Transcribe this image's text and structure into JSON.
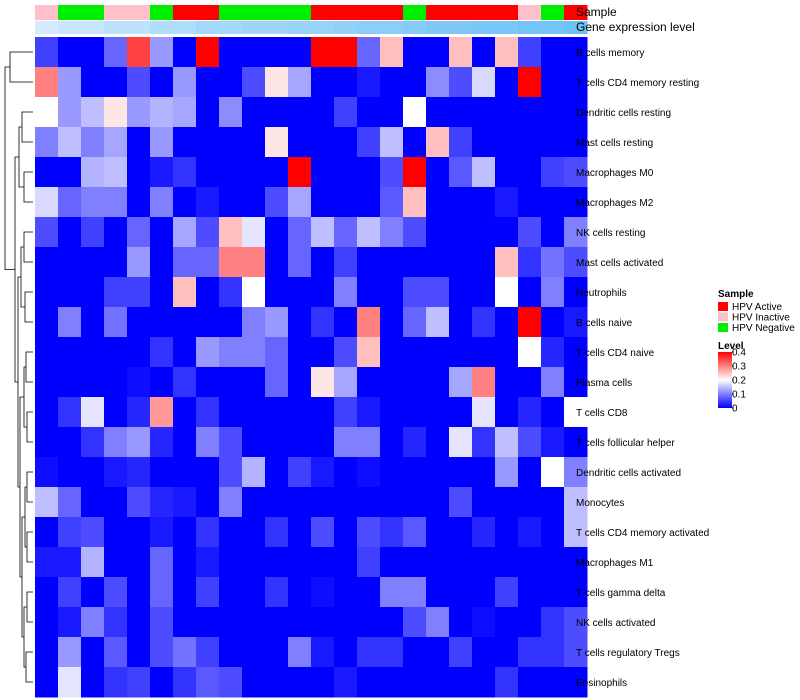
{
  "chart_data": {
    "type": "heatmap",
    "annotation_labels": [
      "Sample",
      "Gene expression level"
    ],
    "sample_groups": [
      "HPV Inactive",
      "HPV Negative",
      "HPV Negative",
      "HPV Inactive",
      "HPV Inactive",
      "HPV Negative",
      "HPV Active",
      "HPV Active",
      "HPV Negative",
      "HPV Negative",
      "HPV Negative",
      "HPV Negative",
      "HPV Active",
      "HPV Active",
      "HPV Active",
      "HPV Active",
      "HPV Negative",
      "HPV Active",
      "HPV Active",
      "HPV Active",
      "HPV Active",
      "HPV Inactive",
      "HPV Negative",
      "HPV Active"
    ],
    "gene_expression_level": [
      0.15,
      0.25,
      0.25,
      0.35,
      0.35,
      0.45,
      0.45,
      0.55,
      0.55,
      0.6,
      0.6,
      0.65,
      0.65,
      0.7,
      0.75,
      0.75,
      0.8,
      0.85,
      0.85,
      0.9,
      0.9,
      0.95,
      0.95,
      1.0
    ],
    "rows": [
      "B cells memory",
      "T cells CD4 memory resting",
      "Dendritic cells resting",
      "Mast cells resting",
      "Macrophages M0",
      "Macrophages M2",
      "NK cells resting",
      "Mast cells activated",
      "Neutrophils",
      "B cells naive",
      "T cells CD4 naive",
      "Plasma cells",
      "T cells CD8",
      "T cells follicular helper",
      "Dendritic cells activated",
      "Monocytes",
      "T cells CD4 memory activated",
      "Macrophages M1",
      "T cells gamma delta",
      "NK cells activated",
      "T cells regulatory  Tregs",
      "Eosinophils"
    ],
    "values": [
      [
        0.05,
        0.0,
        0.0,
        0.08,
        0.35,
        0.12,
        0.0,
        0.4,
        0.0,
        0.0,
        0.0,
        0.0,
        0.4,
        0.4,
        0.08,
        0.25,
        0.0,
        0.0,
        0.25,
        0.0,
        0.25,
        0.05,
        0.0,
        0.0
      ],
      [
        0.3,
        0.12,
        0.0,
        0.0,
        0.06,
        0.0,
        0.12,
        0.0,
        0.0,
        0.06,
        0.22,
        0.13,
        0.0,
        0.0,
        0.02,
        0.0,
        0.0,
        0.11,
        0.06,
        0.17,
        0.0,
        0.4,
        0.0,
        0.0
      ],
      [
        0.2,
        0.12,
        0.15,
        0.22,
        0.12,
        0.14,
        0.13,
        0.0,
        0.11,
        0.0,
        0.0,
        0.0,
        0.0,
        0.05,
        0.0,
        0.0,
        0.2,
        0.0,
        0.0,
        0.0,
        0.0,
        0.0,
        0.0,
        0.0
      ],
      [
        0.1,
        0.15,
        0.1,
        0.13,
        0.0,
        0.12,
        0.0,
        0.0,
        0.0,
        0.0,
        0.22,
        0.0,
        0.0,
        0.0,
        0.05,
        0.15,
        0.0,
        0.25,
        0.05,
        0.0,
        0.0,
        0.0,
        0.0,
        0.0
      ],
      [
        0.0,
        0.0,
        0.14,
        0.15,
        0.0,
        0.02,
        0.04,
        0.0,
        0.0,
        0.0,
        0.0,
        0.4,
        0.0,
        0.0,
        0.0,
        0.06,
        0.4,
        0.0,
        0.07,
        0.15,
        0.0,
        0.0,
        0.05,
        0.06
      ],
      [
        0.17,
        0.08,
        0.1,
        0.1,
        0.0,
        0.1,
        0.0,
        0.02,
        0.0,
        0.0,
        0.06,
        0.13,
        0.0,
        0.0,
        0.0,
        0.07,
        0.25,
        0.0,
        0.0,
        0.0,
        0.02,
        0.0,
        0.0,
        0.0
      ],
      [
        0.06,
        0.0,
        0.05,
        0.0,
        0.08,
        0.0,
        0.13,
        0.06,
        0.25,
        0.18,
        0.0,
        0.08,
        0.15,
        0.08,
        0.15,
        0.1,
        0.06,
        0.0,
        0.0,
        0.0,
        0.0,
        0.06,
        0.0,
        0.1
      ],
      [
        0.0,
        0.0,
        0.0,
        0.0,
        0.12,
        0.0,
        0.08,
        0.08,
        0.3,
        0.3,
        0.0,
        0.08,
        0.0,
        0.05,
        0.0,
        0.0,
        0.0,
        0.0,
        0.0,
        0.0,
        0.25,
        0.04,
        0.09,
        0.06
      ],
      [
        0.0,
        0.0,
        0.0,
        0.05,
        0.05,
        0.0,
        0.25,
        0.0,
        0.04,
        0.2,
        0.0,
        0.0,
        0.0,
        0.1,
        0.0,
        0.0,
        0.06,
        0.06,
        0.0,
        0.0,
        0.2,
        0.0,
        0.1,
        0.0
      ],
      [
        0.0,
        0.1,
        0.0,
        0.09,
        0.0,
        0.0,
        0.0,
        0.0,
        0.0,
        0.1,
        0.12,
        0.0,
        0.04,
        0.0,
        0.3,
        0.0,
        0.08,
        0.15,
        0.0,
        0.04,
        0.0,
        0.4,
        0.0,
        0.02
      ],
      [
        0.0,
        0.0,
        0.0,
        0.0,
        0.0,
        0.04,
        0.0,
        0.12,
        0.1,
        0.1,
        0.08,
        0.0,
        0.0,
        0.06,
        0.25,
        0.0,
        0.0,
        0.0,
        0.0,
        0.0,
        0.0,
        0.2,
        0.03,
        0.0
      ],
      [
        0.0,
        0.0,
        0.0,
        0.0,
        0.01,
        0.0,
        0.04,
        0.0,
        0.0,
        0.0,
        0.08,
        0.0,
        0.22,
        0.13,
        0.0,
        0.0,
        0.0,
        0.0,
        0.13,
        0.3,
        0.0,
        0.0,
        0.1,
        0.0
      ],
      [
        0.0,
        0.04,
        0.18,
        0.0,
        0.03,
        0.28,
        0.0,
        0.04,
        0.0,
        0.0,
        0.0,
        0.0,
        0.0,
        0.05,
        0.02,
        0.0,
        0.0,
        0.0,
        0.0,
        0.18,
        0.0,
        0.03,
        0.0,
        0.2
      ],
      [
        0.0,
        0.0,
        0.04,
        0.1,
        0.12,
        0.03,
        0.0,
        0.1,
        0.06,
        0.0,
        0.0,
        0.0,
        0.0,
        0.1,
        0.1,
        0.0,
        0.03,
        0.0,
        0.18,
        0.04,
        0.15,
        0.06,
        0.02,
        0.0
      ],
      [
        0.01,
        0.0,
        0.0,
        0.02,
        0.03,
        0.0,
        0.0,
        0.0,
        0.06,
        0.14,
        0.0,
        0.05,
        0.02,
        0.0,
        0.01,
        0.0,
        0.0,
        0.0,
        0.0,
        0.0,
        0.12,
        0.0,
        0.2,
        0.1
      ],
      [
        0.15,
        0.08,
        0.0,
        0.0,
        0.06,
        0.03,
        0.02,
        0.0,
        0.1,
        0.0,
        0.0,
        0.0,
        0.0,
        0.0,
        0.0,
        0.0,
        0.0,
        0.0,
        0.06,
        0.0,
        0.0,
        0.0,
        0.0,
        0.15
      ],
      [
        0.0,
        0.05,
        0.06,
        0.0,
        0.0,
        0.02,
        0.0,
        0.04,
        0.0,
        0.0,
        0.04,
        0.0,
        0.06,
        0.0,
        0.06,
        0.04,
        0.07,
        0.0,
        0.0,
        0.03,
        0.0,
        0.02,
        0.0,
        0.15
      ],
      [
        0.02,
        0.02,
        0.14,
        0.0,
        0.0,
        0.08,
        0.0,
        0.02,
        0.0,
        0.0,
        0.0,
        0.0,
        0.0,
        0.0,
        0.05,
        0.0,
        0.0,
        0.0,
        0.0,
        0.0,
        0.0,
        0.0,
        0.0,
        0.0
      ],
      [
        0.0,
        0.05,
        0.0,
        0.06,
        0.0,
        0.08,
        0.0,
        0.05,
        0.0,
        0.0,
        0.04,
        0.0,
        0.01,
        0.0,
        0.0,
        0.1,
        0.1,
        0.0,
        0.0,
        0.0,
        0.05,
        0.0,
        0.0,
        0.0
      ],
      [
        0.0,
        0.02,
        0.1,
        0.04,
        0.0,
        0.06,
        0.0,
        0.0,
        0.0,
        0.0,
        0.0,
        0.0,
        0.0,
        0.0,
        0.0,
        0.0,
        0.06,
        0.1,
        0.0,
        0.01,
        0.0,
        0.0,
        0.04,
        0.06
      ],
      [
        0.0,
        0.12,
        0.0,
        0.07,
        0.0,
        0.06,
        0.09,
        0.05,
        0.0,
        0.0,
        0.0,
        0.1,
        0.02,
        0.0,
        0.04,
        0.04,
        0.0,
        0.0,
        0.05,
        0.0,
        0.0,
        0.04,
        0.04,
        0.06
      ],
      [
        0.0,
        0.18,
        0.0,
        0.04,
        0.05,
        0.0,
        0.04,
        0.07,
        0.06,
        0.0,
        0.0,
        0.0,
        0.0,
        0.02,
        0.0,
        0.0,
        0.0,
        0.0,
        0.0,
        0.0,
        0.04,
        0.0,
        0.0,
        0.0
      ]
    ],
    "legend": {
      "sample_title": "Sample",
      "sample_entries": [
        {
          "label": "HPV Active",
          "color": "#ff0000"
        },
        {
          "label": "HPV Inactive",
          "color": "#ffc0cb"
        },
        {
          "label": "HPV Negative",
          "color": "#00ee00"
        }
      ],
      "level_title": "Level",
      "level_ticks": [
        "0.4",
        "0.3",
        "0.2",
        "0.1",
        "0"
      ],
      "level_range": [
        0,
        0.4
      ],
      "level_tick_values": [
        0.4,
        0.3,
        0.2,
        0.1,
        0
      ]
    },
    "colors": {
      "low": "#0000ff",
      "mid": "#ffffff",
      "high": "#ff0000",
      "expr_low": "#e6f4ff",
      "expr_high": "#6ec1f5"
    }
  }
}
